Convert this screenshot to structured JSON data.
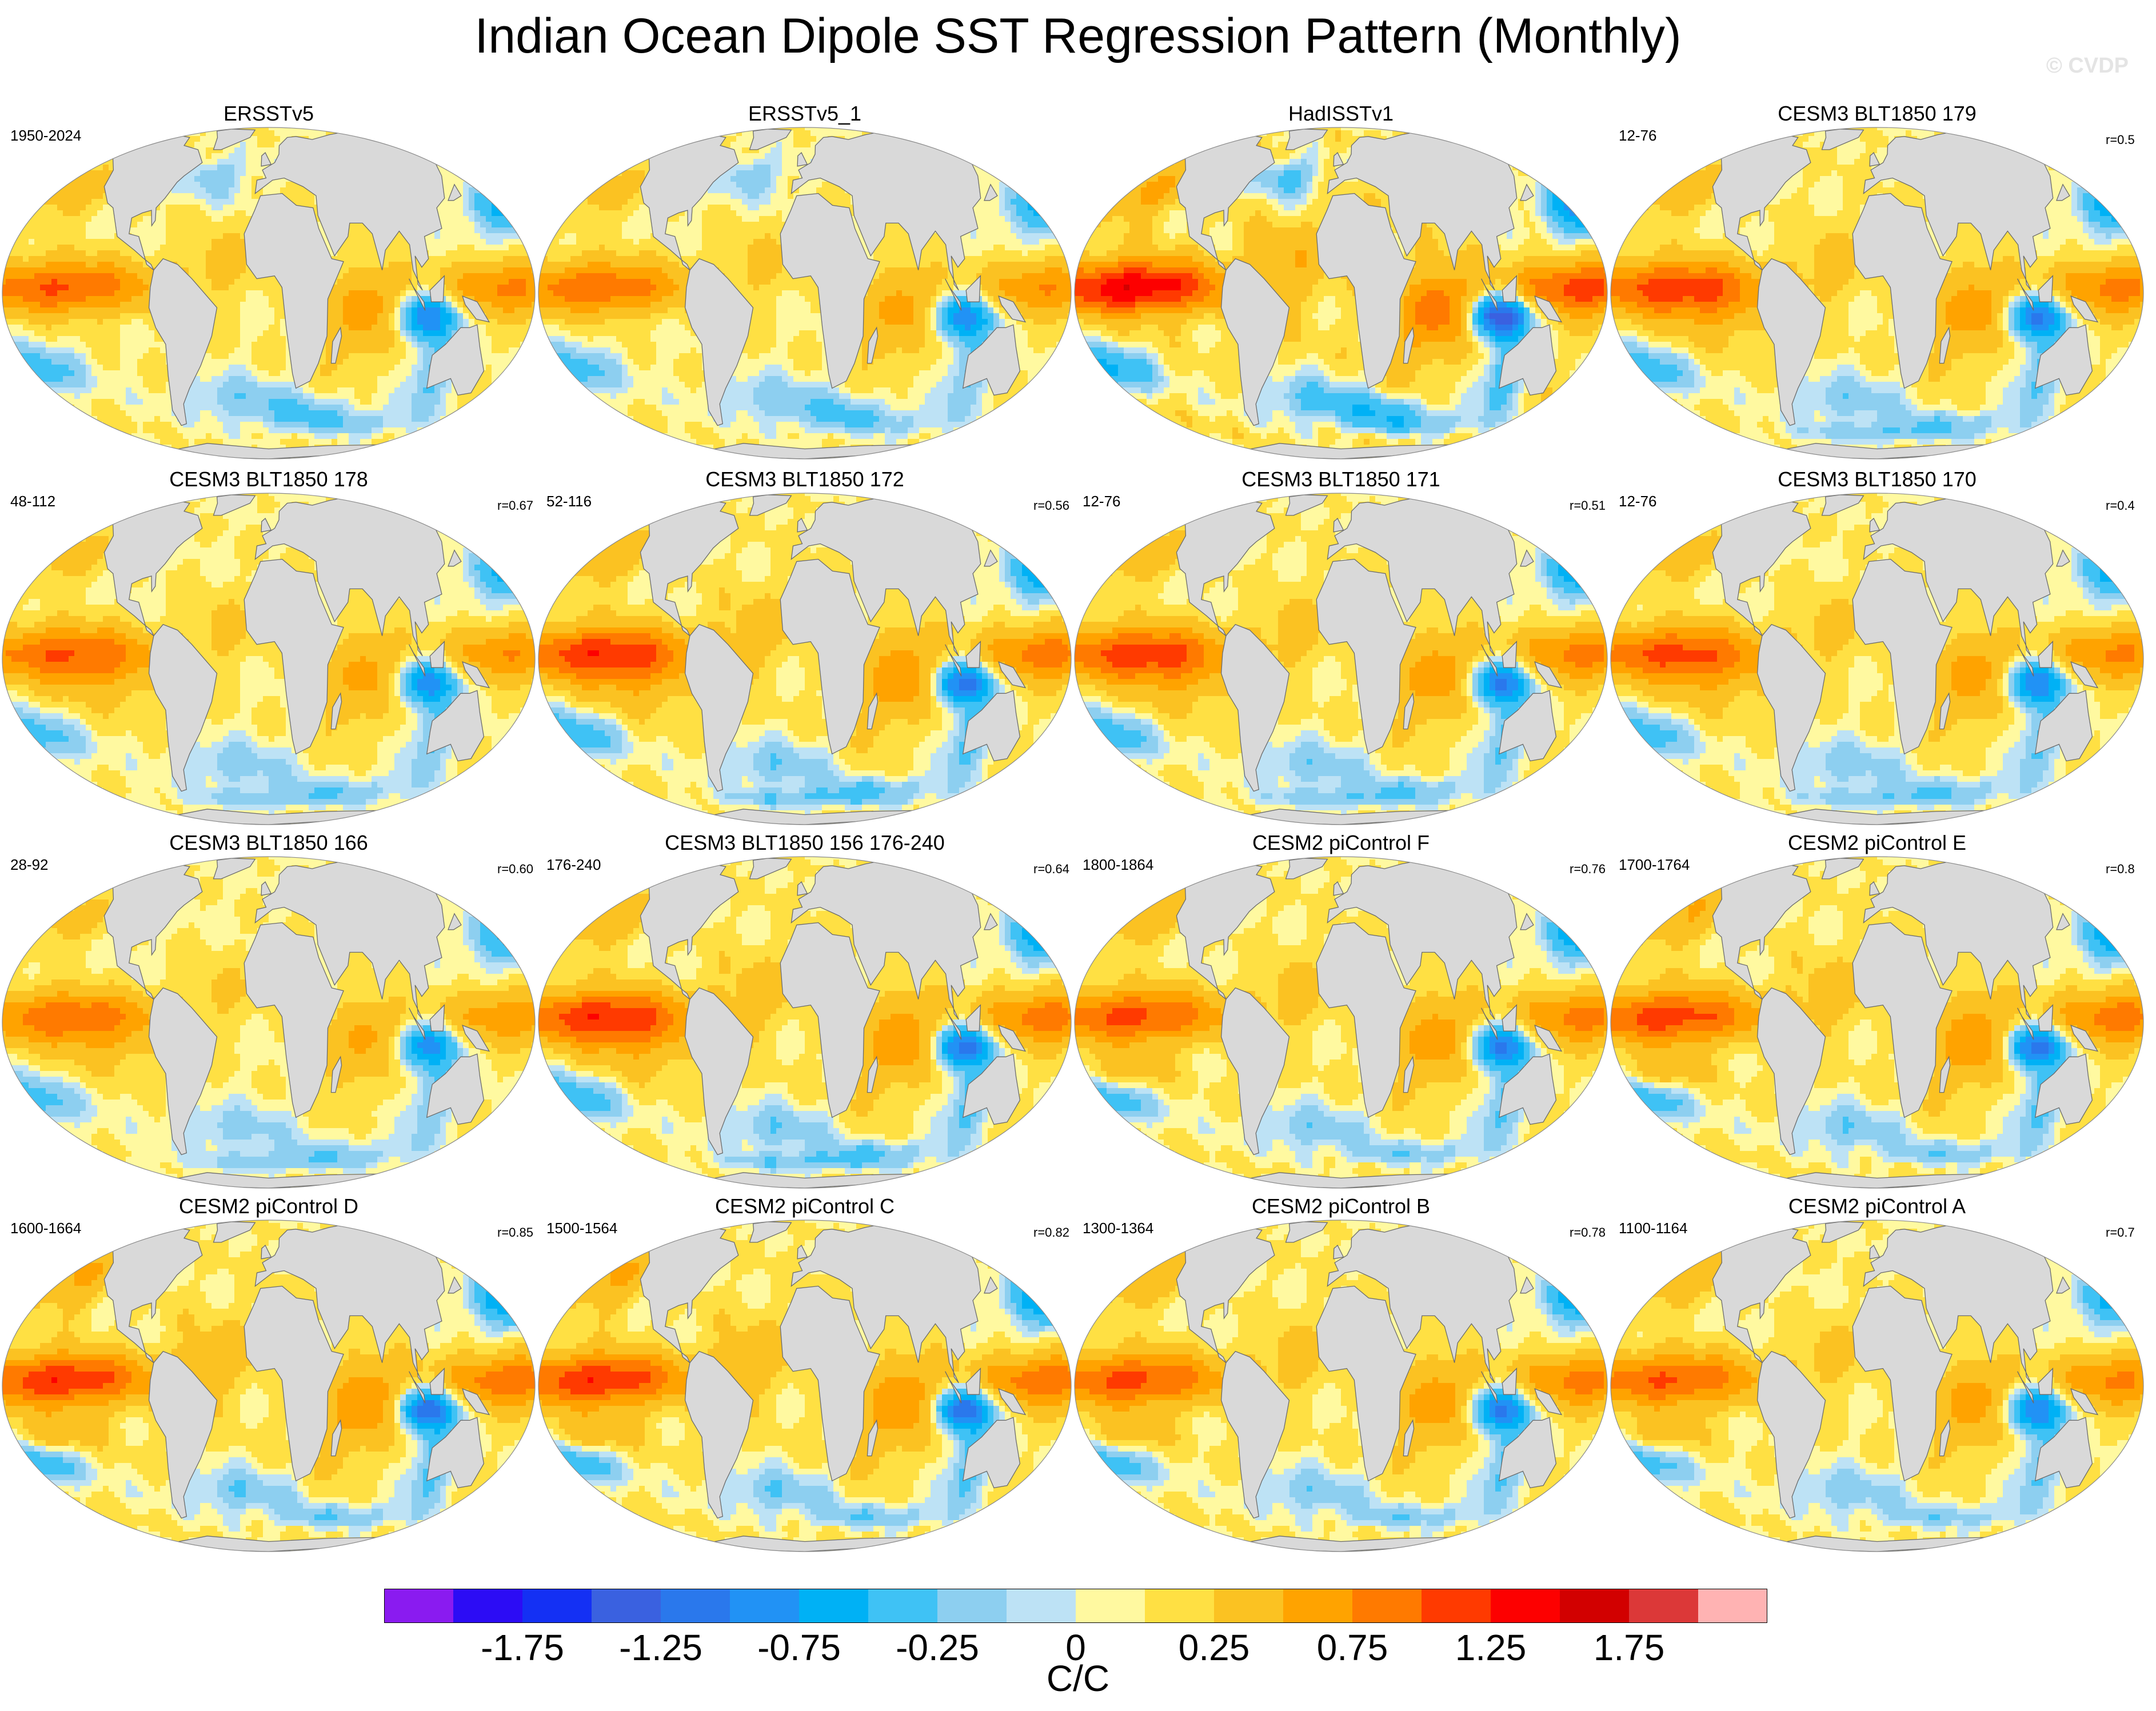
{
  "title": "Indian Ocean Dipole SST Regression Pattern (Monthly)",
  "watermark": "© CVDP",
  "panels": [
    {
      "title": "ERSSTv5",
      "period": "1950-2024",
      "r": "",
      "pattern": "obs",
      "amp": 0.8
    },
    {
      "title": "ERSSTv5_1",
      "period": "",
      "r": "",
      "pattern": "obs",
      "amp": 0.75
    },
    {
      "title": "HadISSTv1",
      "period": "",
      "r": "",
      "pattern": "obs",
      "amp": 1.15
    },
    {
      "title": "CESM3 BLT1850 179",
      "period": "12-76",
      "r": "r=0.5",
      "pattern": "cesm3",
      "amp": 0.85
    },
    {
      "title": "CESM3 BLT1850 178",
      "period": "48-112",
      "r": "r=0.67",
      "pattern": "cesm3",
      "amp": 0.75
    },
    {
      "title": "CESM3 BLT1850 172",
      "period": "52-116",
      "r": "r=0.56",
      "pattern": "cesm3",
      "amp": 0.9
    },
    {
      "title": "CESM3 BLT1850 171",
      "period": "12-76",
      "r": "r=0.51",
      "pattern": "cesm3",
      "amp": 0.85
    },
    {
      "title": "CESM3 BLT1850 170",
      "period": "12-76",
      "r": "r=0.4",
      "pattern": "cesm3",
      "amp": 0.8
    },
    {
      "title": "CESM3 BLT1850 166",
      "period": "28-92",
      "r": "r=0.60",
      "pattern": "cesm3",
      "amp": 0.7
    },
    {
      "title": "CESM3 BLT1850 156 176-240",
      "period": "176-240",
      "r": "r=0.64",
      "pattern": "cesm3",
      "amp": 0.9
    },
    {
      "title": "CESM2 piControl F",
      "period": "1800-1864",
      "r": "r=0.76",
      "pattern": "cesm2",
      "amp": 0.85
    },
    {
      "title": "CESM2 piControl E",
      "period": "1700-1764",
      "r": "r=0.8",
      "pattern": "cesm2",
      "amp": 0.9
    },
    {
      "title": "CESM2 piControl D",
      "period": "1600-1664",
      "r": "r=0.85",
      "pattern": "cesm2",
      "amp": 0.95
    },
    {
      "title": "CESM2 piControl C",
      "period": "1500-1564",
      "r": "r=0.82",
      "pattern": "cesm2",
      "amp": 0.95
    },
    {
      "title": "CESM2 piControl B",
      "period": "1300-1364",
      "r": "r=0.78",
      "pattern": "cesm2",
      "amp": 0.85
    },
    {
      "title": "CESM2 piControl A",
      "period": "1100-1164",
      "r": "r=0.7",
      "pattern": "cesm2",
      "amp": 0.8
    }
  ],
  "colorbar": {
    "levels": [
      -2,
      -1.75,
      -1.5,
      -1.25,
      -1,
      -0.75,
      -0.5,
      -0.25,
      -0.1,
      0,
      0.1,
      0.25,
      0.5,
      0.75,
      1,
      1.25,
      1.5,
      1.75,
      2
    ],
    "colors": [
      "#8a1bf0",
      "#2c0cf5",
      "#1430f4",
      "#3a61e0",
      "#2a78ec",
      "#2192f5",
      "#00b1f5",
      "#3fc2f5",
      "#8dcff0",
      "#bde2f5",
      "#fff9a0",
      "#ffe043",
      "#fbc222",
      "#ffa300",
      "#ff7a00",
      "#ff3a00",
      "#fd0000",
      "#d20000",
      "#dc3838",
      "#ffb3b3"
    ],
    "tick_labels": [
      "-1.75",
      "-1.25",
      "-0.75",
      "-0.25",
      "0",
      "0.25",
      "0.75",
      "1.25",
      "1.75"
    ],
    "units": "C/C"
  }
}
